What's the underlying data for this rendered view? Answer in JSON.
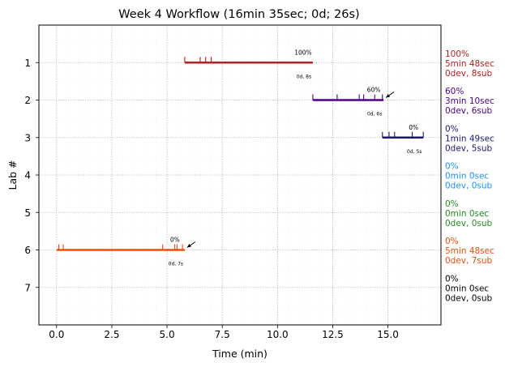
{
  "chart_data": {
    "type": "timeline",
    "title": "Week 4 Workflow (16min 35sec; 0d; 26s)",
    "xlabel": "Time (min)",
    "ylabel": "Lab #",
    "xlim": [
      -0.8,
      17.4
    ],
    "ylim": [
      0,
      8
    ],
    "xticks": [
      0.0,
      2.5,
      5.0,
      7.5,
      10.0,
      12.5,
      15.0
    ],
    "xtick_labels": [
      "0.0",
      "2.5",
      "5.0",
      "7.5",
      "10.0",
      "12.5",
      "15.0"
    ],
    "yticks": [
      1,
      2,
      3,
      4,
      5,
      6,
      7
    ],
    "ytick_labels": [
      "1",
      "2",
      "3",
      "4",
      "5",
      "6",
      "7"
    ],
    "y_inverted": true,
    "grid": true,
    "labs": [
      {
        "lab": 1,
        "color": "#b22222",
        "start": 5.8,
        "end": 11.6,
        "ticks": [
          5.8,
          6.5,
          6.75,
          7.0
        ],
        "pct_label": "100%",
        "dev_label": "0d, 8s",
        "arrow": false,
        "side_pct": "100%",
        "side_time": "5min 48sec",
        "side_dev": "0dev, 8sub"
      },
      {
        "lab": 2,
        "color": "#4b0082",
        "start": 11.6,
        "end": 14.8,
        "ticks": [
          11.6,
          12.7,
          13.7,
          13.9,
          14.4,
          14.75
        ],
        "pct_label": "60%",
        "dev_label": "0d, 6s",
        "arrow": true,
        "side_pct": "60%",
        "side_time": "3min 10sec",
        "side_dev": "0dev, 6sub"
      },
      {
        "lab": 3,
        "color": "#191970",
        "start": 14.75,
        "end": 16.6,
        "ticks": [
          14.75,
          15.05,
          15.3,
          16.1,
          16.6
        ],
        "pct_label": "0%",
        "dev_label": "0d, 5s",
        "arrow": false,
        "side_pct": "0%",
        "side_time": "1min 49sec",
        "side_dev": "0dev, 5sub"
      },
      {
        "lab": 4,
        "color": "#1e90ff",
        "side_pct": "0%",
        "side_time": "0min 0sec",
        "side_dev": "0dev, 0sub"
      },
      {
        "lab": 5,
        "color": "#228b22",
        "side_pct": "0%",
        "side_time": "0min 0sec",
        "side_dev": "0dev, 0sub"
      },
      {
        "lab": 6,
        "color": "#e8500a",
        "start": 0.0,
        "end": 5.8,
        "ticks": [
          0.1,
          0.3,
          4.8,
          5.35,
          5.45,
          5.7
        ],
        "pct_label": "0%",
        "dev_label": "0d, 7s",
        "arrow": true,
        "side_pct": "0%",
        "side_time": "5min 48sec",
        "side_dev": "0dev, 7sub"
      },
      {
        "lab": 7,
        "color": "#000000",
        "side_pct": "0%",
        "side_time": "0min 0sec",
        "side_dev": "0dev, 0sub"
      }
    ]
  }
}
